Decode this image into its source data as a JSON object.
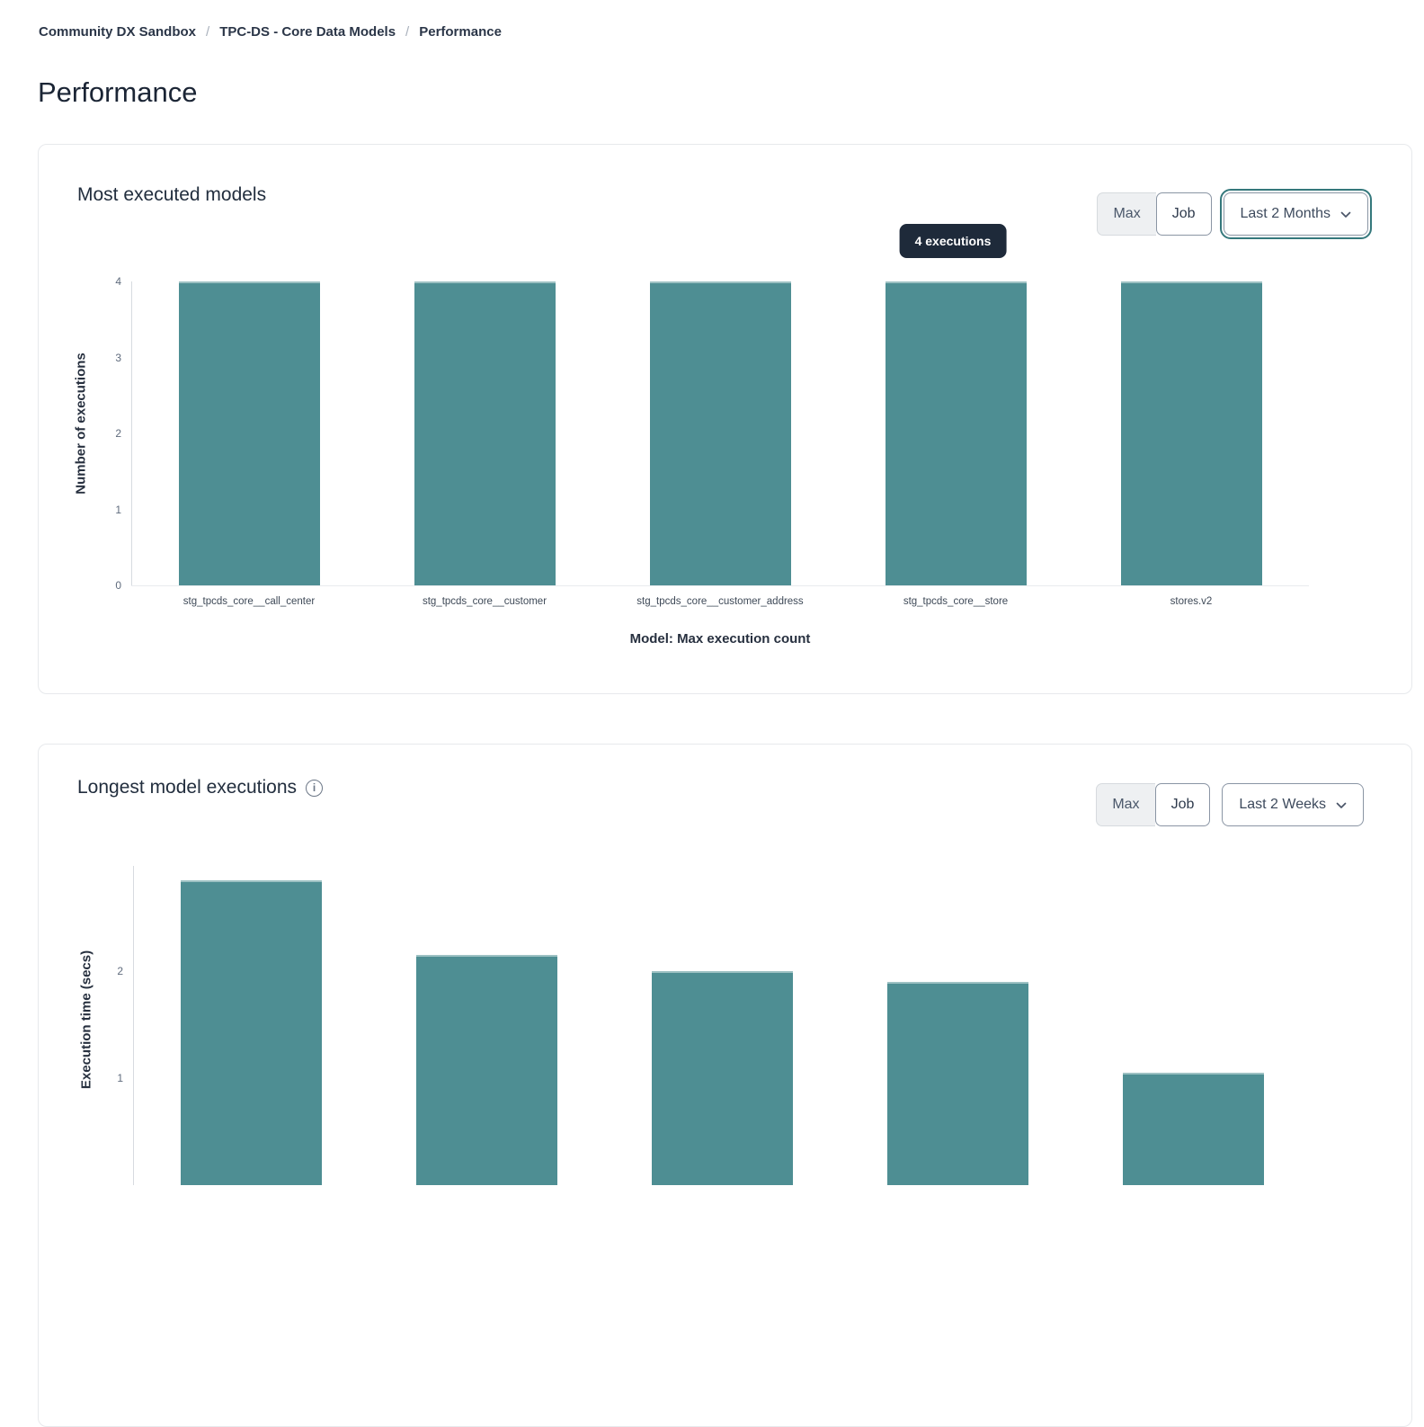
{
  "breadcrumb": {
    "separator": "/",
    "items": [
      "Community DX Sandbox",
      "TPC-DS - Core Data Models",
      "Performance"
    ]
  },
  "page": {
    "title": "Performance"
  },
  "cards": [
    {
      "title": "Most executed models",
      "controls": {
        "max_label": "Max",
        "job_label": "Job",
        "period_value": "Last 2 Months"
      },
      "tooltip_text": "4 executions"
    },
    {
      "title": "Longest model executions",
      "controls": {
        "max_label": "Max",
        "job_label": "Job",
        "period_value": "Last 2 Weeks"
      }
    }
  ],
  "chart_data": [
    {
      "type": "bar",
      "title": "Most executed models",
      "categories": [
        "stg_tpcds_core__call_center",
        "stg_tpcds_core__customer",
        "stg_tpcds_core__customer_address",
        "stg_tpcds_core__store",
        "stores.v2"
      ],
      "values": [
        4,
        4,
        4,
        4,
        4
      ],
      "ylabel": "Number of executions",
      "xlabel": "Model: Max execution count",
      "yticks": [
        0,
        1,
        2,
        3,
        4
      ],
      "ylim": [
        0,
        4
      ],
      "grid": false,
      "legend": null,
      "bar_color": "#4e8e93",
      "tooltip": {
        "text": "4 executions",
        "bar_index": 3
      }
    },
    {
      "type": "bar",
      "title": "Longest model executions",
      "categories": null,
      "values": [
        2.85,
        2.15,
        2.0,
        1.9,
        1.05
      ],
      "ylabel": "Execution time (secs)",
      "xlabel": "",
      "yticks": [
        1,
        2
      ],
      "ylim": [
        0,
        2.98
      ],
      "grid": false,
      "legend": null,
      "bar_color": "#4e8e93"
    }
  ],
  "colors": {
    "bar": "#4e8e93",
    "tooltip_bg": "#1e2a3a",
    "focus_ring": "#35787c",
    "card_border": "#e7e9ec",
    "text_dark": "#222e3e",
    "tick_text": "#5f6b7d"
  }
}
